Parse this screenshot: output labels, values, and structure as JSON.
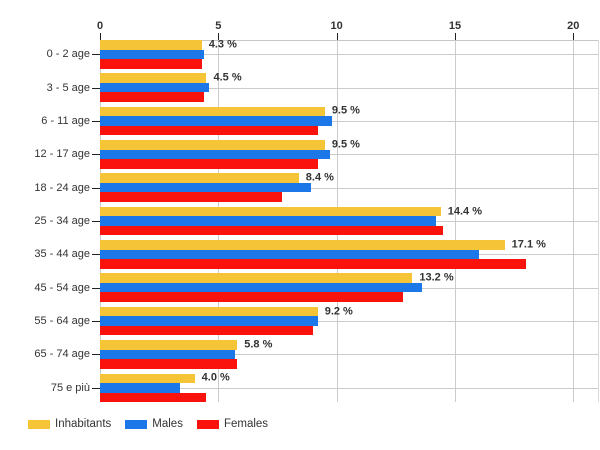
{
  "chart_data": {
    "type": "bar",
    "orientation": "horizontal",
    "title": "",
    "categories": [
      "0 - 2 age",
      "3 - 5 age",
      "6 - 11 age",
      "12 - 17 age",
      "18 - 24 age",
      "25 - 34 age",
      "35 - 44 age",
      "45 - 54 age",
      "55 - 64 age",
      "65 - 74 age",
      "75 e più"
    ],
    "series": [
      {
        "name": "Inhabitants",
        "color": "#F6C437",
        "values": [
          4.3,
          4.5,
          9.5,
          9.5,
          8.4,
          14.4,
          17.1,
          13.2,
          9.2,
          5.8,
          4.0
        ]
      },
      {
        "name": "Males",
        "color": "#1C78E8",
        "values": [
          4.4,
          4.6,
          9.8,
          9.7,
          8.9,
          14.2,
          16.0,
          13.6,
          9.2,
          5.7,
          3.4
        ]
      },
      {
        "name": "Females",
        "color": "#FA120D",
        "values": [
          4.3,
          4.4,
          9.2,
          9.2,
          7.7,
          14.5,
          18.0,
          12.8,
          9.0,
          5.8,
          4.5
        ]
      }
    ],
    "value_labels": [
      "4.3 %",
      "4.5 %",
      "9.5 %",
      "9.5 %",
      "8.4 %",
      "14.4 %",
      "17.1 %",
      "13.2 %",
      "9.2 %",
      "5.8 %",
      "4.0 %"
    ],
    "value_label_series": "Inhabitants",
    "x_ticks": [
      0,
      5,
      10,
      15,
      20
    ],
    "x_tick_labels": [
      "0",
      "5",
      "10",
      "15",
      "20"
    ],
    "xlim": [
      0,
      20
    ],
    "xlabel": "",
    "ylabel": "",
    "grid": true,
    "legend_position": "bottom-left",
    "axis_text_color": "#333333",
    "gridline_color": "#cccccc"
  }
}
